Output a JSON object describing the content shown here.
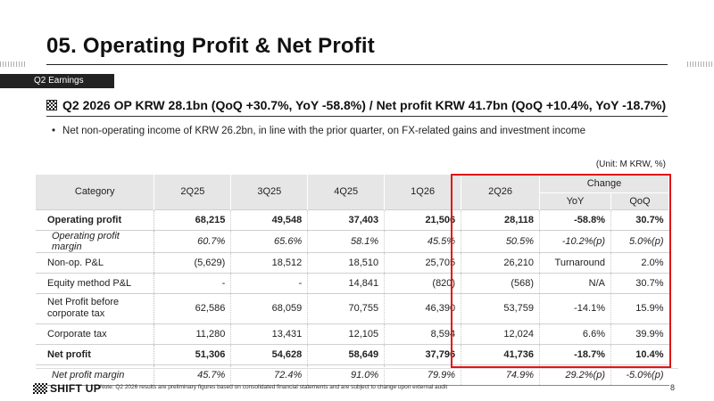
{
  "slide": {
    "title": "05. Operating Profit & Net Profit",
    "section_tag": "Q2 Earnings",
    "headline": "Q2 2026 OP KRW 28.1bn (QoQ +30.7%, YoY -58.8%) / Net profit KRW 41.7bn (QoQ +10.4%, YoY -18.7%)",
    "bullet": "Net non-operating income of KRW 26.2bn, in line with the prior quarter, on FX-related gains and investment income",
    "bullet_marker": "•",
    "unit": "(Unit: M KRW, %)",
    "page_number": "8",
    "footnote": "Note: Q2 2026 results are preliminary figures based on consolidated financial statements and are subject to change upon external audit",
    "logo_text": "SHIFT UP"
  },
  "table": {
    "headers": {
      "category": "Category",
      "q1": "2Q25",
      "q2": "3Q25",
      "q3": "4Q25",
      "q4": "1Q26",
      "q5": "2Q26",
      "change": "Change",
      "yoy": "YoY",
      "qoq": "QoQ"
    },
    "rows": [
      {
        "label": "Operating profit",
        "v": [
          "68,215",
          "49,548",
          "37,403",
          "21,506",
          "28,118",
          "-58.8%",
          "30.7%"
        ],
        "style": "bold"
      },
      {
        "label": "Operating profit margin",
        "v": [
          "60.7%",
          "65.6%",
          "58.1%",
          "45.5%",
          "50.5%",
          "-10.2%(p)",
          "5.0%(p)"
        ],
        "style": "ital"
      },
      {
        "label": "Non-op. P&L",
        "v": [
          "(5,629)",
          "18,512",
          "18,510",
          "25,705",
          "26,210",
          "Turnaround",
          "2.0%"
        ],
        "style": ""
      },
      {
        "label": "Equity method P&L",
        "v": [
          "-",
          "-",
          "14,841",
          "(820)",
          "(568)",
          "N/A",
          "30.7%"
        ],
        "style": ""
      },
      {
        "label": "Net Profit before corporate tax",
        "v": [
          "62,586",
          "68,059",
          "70,755",
          "46,390",
          "53,759",
          "-14.1%",
          "15.9%"
        ],
        "style": "tall"
      },
      {
        "label": "Corporate tax",
        "v": [
          "11,280",
          "13,431",
          "12,105",
          "8,594",
          "12,024",
          "6.6%",
          "39.9%"
        ],
        "style": ""
      },
      {
        "label": "Net profit",
        "v": [
          "51,306",
          "54,628",
          "58,649",
          "37,796",
          "41,736",
          "-18.7%",
          "10.4%"
        ],
        "style": "bold"
      },
      {
        "label": "Net profit margin",
        "v": [
          "45.7%",
          "72.4%",
          "91.0%",
          "79.9%",
          "74.9%",
          "29.2%(p)",
          "-5.0%(p)"
        ],
        "style": "ital"
      }
    ]
  },
  "colors": {
    "highlight_border": "#e01515",
    "header_bg": "#e6e6e6",
    "section_tag_bg": "#222222"
  }
}
